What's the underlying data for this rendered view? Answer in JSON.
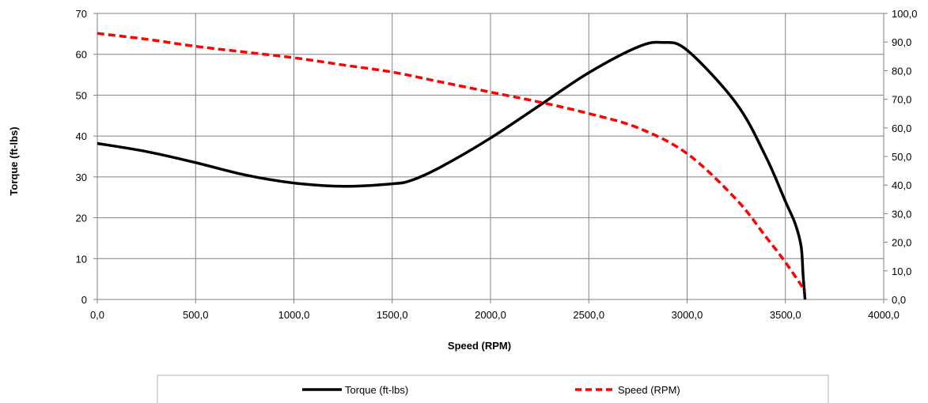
{
  "chart_data": {
    "type": "line",
    "xlabel": "Speed (RPM)",
    "ylabel": "Torque (ft-lbs)",
    "xlim": [
      0,
      4000
    ],
    "ylim": [
      0,
      70
    ],
    "y2lim": [
      0,
      100
    ],
    "x_ticks": [
      "0,0",
      "500,0",
      "1000,0",
      "1500,0",
      "2000,0",
      "2500,0",
      "3000,0",
      "3500,0",
      "4000,0"
    ],
    "y_ticks": [
      "0",
      "10",
      "20",
      "30",
      "40",
      "50",
      "60",
      "70"
    ],
    "y2_ticks": [
      "0,0",
      "10,0",
      "20,0",
      "30,0",
      "40,0",
      "50,0",
      "60,0",
      "70,0",
      "80,0",
      "90,0",
      "100,0"
    ],
    "grid": true,
    "legend_position": "bottom",
    "series": [
      {
        "name": "Torque (ft-lbs)",
        "axis": "left",
        "color": "#000000",
        "style": "solid",
        "x": [
          0,
          250,
          500,
          750,
          1000,
          1250,
          1500,
          1600,
          1750,
          2000,
          2250,
          2500,
          2750,
          2875,
          3000,
          3250,
          3400,
          3500,
          3550,
          3580,
          3590,
          3600
        ],
        "y": [
          38.2,
          36.2,
          33.5,
          30.5,
          28.5,
          27.7,
          28.3,
          29.2,
          32.5,
          39.5,
          47.5,
          55.5,
          61.8,
          62.9,
          61.0,
          48.0,
          35.0,
          24.0,
          18.5,
          13.0,
          6.0,
          0.0
        ]
      },
      {
        "name": "Speed (RPM)",
        "axis": "right",
        "color": "#ff0000",
        "style": "dashed",
        "x": [
          0,
          250,
          500,
          750,
          1000,
          1250,
          1500,
          1750,
          2000,
          2250,
          2500,
          2750,
          3000,
          3250,
          3400,
          3500,
          3600
        ],
        "y": [
          93.0,
          91.0,
          88.5,
          86.5,
          84.5,
          82.0,
          79.5,
          76.0,
          72.5,
          69.0,
          65.0,
          60.0,
          51.0,
          35.0,
          22.0,
          13.0,
          3.0
        ]
      }
    ]
  }
}
